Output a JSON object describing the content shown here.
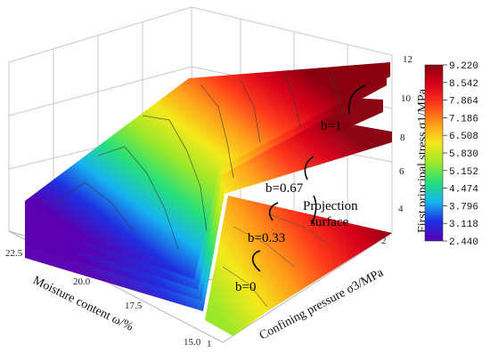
{
  "chart_data": {
    "type": "surface-3d",
    "xlabel": "Moisture content ω/%",
    "ylabel": "Confining pressure σ3/MPa",
    "zlabel": "First principal stress σ1/MPa",
    "x_ticks": [
      "22.5",
      "20.0",
      "17.5",
      "15.0"
    ],
    "y_ticks": [
      "1",
      "2"
    ],
    "z_ticks": [
      "4",
      "6",
      "8",
      "10",
      "12"
    ],
    "zlim": [
      2,
      12
    ],
    "colorbar": {
      "ticks": [
        "9.220",
        "8.542",
        "7.864",
        "7.186",
        "6.508",
        "5.830",
        "5.152",
        "4.474",
        "3.796",
        "3.118",
        "2.440"
      ],
      "min": 2.44,
      "max": 9.22,
      "colors": [
        "#5a00b0",
        "#1f2fe0",
        "#16b4f0",
        "#26e07a",
        "#9be82a",
        "#f4e91a",
        "#ff9a1a",
        "#ff3a1a",
        "#d8001a",
        "#8a0010"
      ]
    },
    "series": [
      {
        "name": "b=0",
        "label": "b=0"
      },
      {
        "name": "b=0.33",
        "label": "b=0.33"
      },
      {
        "name": "b=0.67",
        "label": "b=0.67"
      },
      {
        "name": "b=1",
        "label": "b=1"
      }
    ],
    "annotation": {
      "line1": "Projection",
      "line2": "surface"
    }
  }
}
